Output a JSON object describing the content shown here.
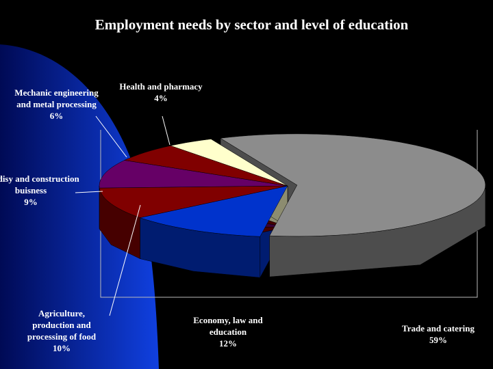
{
  "chart_data": {
    "type": "pie3d",
    "title": "Employment needs by sector and level of education",
    "categories": [
      "Trade and catering",
      "Economy, law and education",
      "Agriculture, production and processing of food",
      "Geodisy and construction buisness",
      "Mechanic engineering and metal processing",
      "Health and pharmacy"
    ],
    "values": [
      59,
      12,
      10,
      9,
      6,
      4
    ],
    "value_labels": [
      "59%",
      "12%",
      "10%",
      "9%",
      "6%",
      "4%"
    ],
    "colors": [
      "#8c8c8c",
      "#0033cc",
      "#800000",
      "#660066",
      "#800000",
      "#ffffcc"
    ]
  }
}
